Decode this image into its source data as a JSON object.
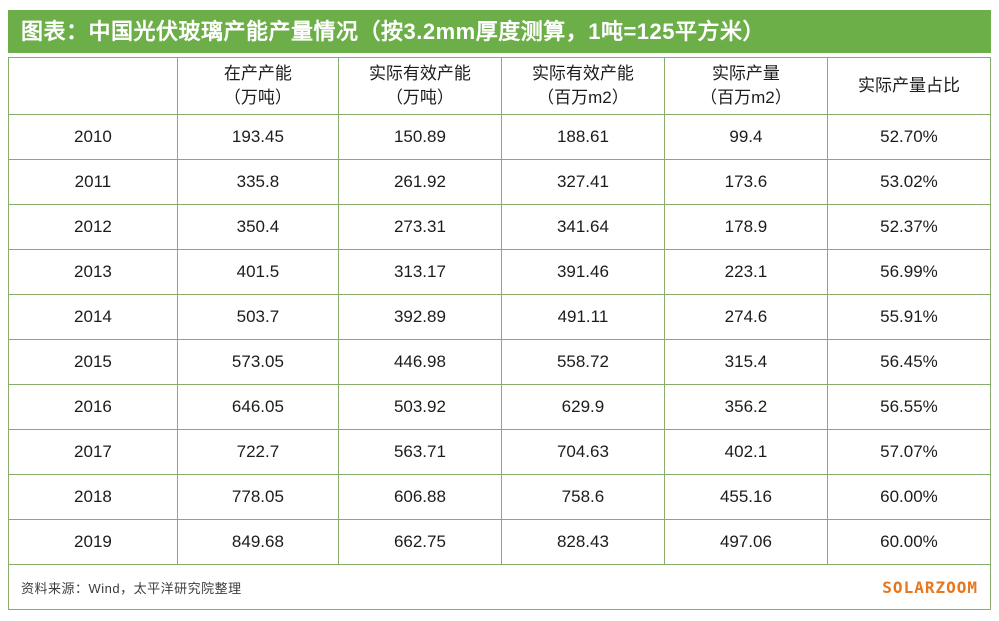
{
  "header": {
    "title": "图表：中国光伏玻璃产能产量情况（按3.2mm厚度测算，1吨=125平方米）"
  },
  "colors": {
    "accent_green": "#6CAE47",
    "border_green": "#87AC6B",
    "logo_orange": "#E8761C",
    "title_text": "#FFFFFF",
    "body_text": "#1C1C1C"
  },
  "table": {
    "columns": [
      "",
      "在产产能\n（万吨）",
      "实际有效产能\n（万吨）",
      "实际有效产能\n（百万m2）",
      "实际产量\n（百万m2）",
      "实际产量占比"
    ],
    "rows": [
      [
        "2010",
        "193.45",
        "150.89",
        "188.61",
        "99.4",
        "52.70%"
      ],
      [
        "2011",
        "335.8",
        "261.92",
        "327.41",
        "173.6",
        "53.02%"
      ],
      [
        "2012",
        "350.4",
        "273.31",
        "341.64",
        "178.9",
        "52.37%"
      ],
      [
        "2013",
        "401.5",
        "313.17",
        "391.46",
        "223.1",
        "56.99%"
      ],
      [
        "2014",
        "503.7",
        "392.89",
        "491.11",
        "274.6",
        "55.91%"
      ],
      [
        "2015",
        "573.05",
        "446.98",
        "558.72",
        "315.4",
        "56.45%"
      ],
      [
        "2016",
        "646.05",
        "503.92",
        "629.9",
        "356.2",
        "56.55%"
      ],
      [
        "2017",
        "722.7",
        "563.71",
        "704.63",
        "402.1",
        "57.07%"
      ],
      [
        "2018",
        "778.05",
        "606.88",
        "758.6",
        "455.16",
        "60.00%"
      ],
      [
        "2019",
        "849.68",
        "662.75",
        "828.43",
        "497.06",
        "60.00%"
      ]
    ]
  },
  "footer": {
    "source": "资料来源：Wind，太平洋研究院整理",
    "logo": "SOLARZOOM"
  },
  "chart_data": {
    "type": "table",
    "title": "中国光伏玻璃产能产量情况（按3.2mm厚度测算，1吨=125平方米）",
    "columns": [
      "",
      "在产产能（万吨）",
      "实际有效产能（万吨）",
      "实际有效产能（百万m2）",
      "实际产量（百万m2）",
      "实际产量占比"
    ],
    "rows": [
      [
        2010,
        193.45,
        150.89,
        188.61,
        99.4,
        "52.70%"
      ],
      [
        2011,
        335.8,
        261.92,
        327.41,
        173.6,
        "53.02%"
      ],
      [
        2012,
        350.4,
        273.31,
        341.64,
        178.9,
        "52.37%"
      ],
      [
        2013,
        401.5,
        313.17,
        391.46,
        223.1,
        "56.99%"
      ],
      [
        2014,
        503.7,
        392.89,
        491.11,
        274.6,
        "55.91%"
      ],
      [
        2015,
        573.05,
        446.98,
        558.72,
        315.4,
        "56.45%"
      ],
      [
        2016,
        646.05,
        503.92,
        629.9,
        356.2,
        "56.55%"
      ],
      [
        2017,
        722.7,
        563.71,
        704.63,
        402.1,
        "57.07%"
      ],
      [
        2018,
        778.05,
        606.88,
        758.6,
        455.16,
        "60.00%"
      ],
      [
        2019,
        849.68,
        662.75,
        828.43,
        497.06,
        "60.00%"
      ]
    ],
    "source": "资料来源：Wind，太平洋研究院整理"
  }
}
